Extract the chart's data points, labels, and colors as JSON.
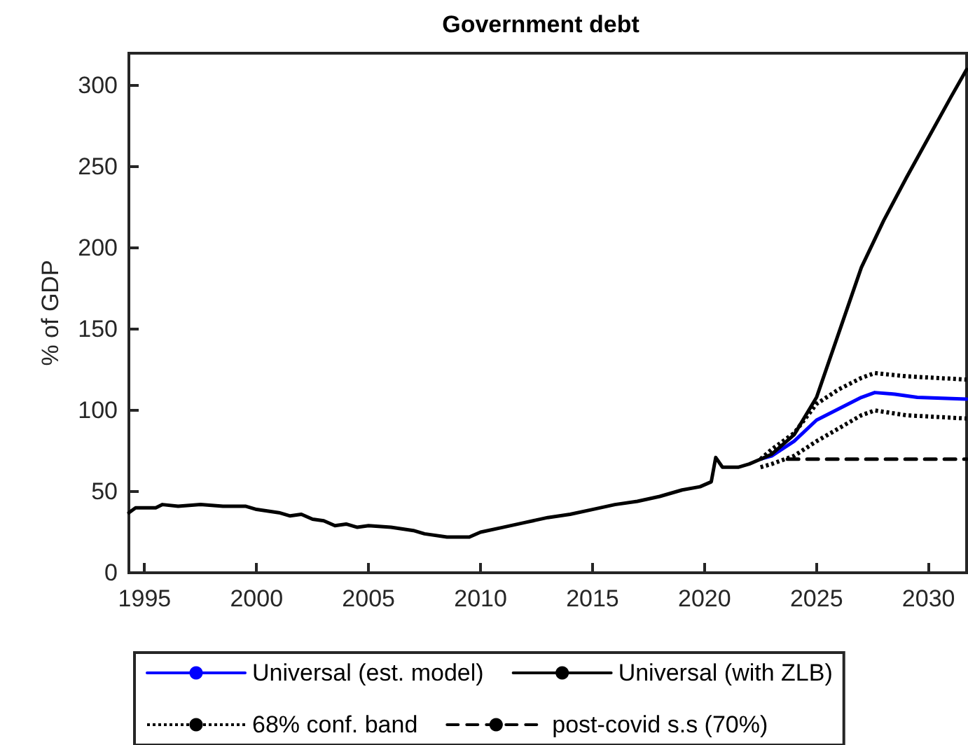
{
  "chart_data": {
    "type": "line",
    "title": "Government debt",
    "ylabel": "% of GDP",
    "xlim": [
      1994.3,
      2031.7
    ],
    "xticks": [
      1995,
      2000,
      2005,
      2010,
      2015,
      2020,
      2025,
      2030
    ],
    "ylim": [
      0,
      320
    ],
    "yticks": [
      0,
      50,
      100,
      150,
      200,
      250,
      300
    ],
    "grid": false,
    "legend": "bottom",
    "marker": "none",
    "series": [
      {
        "name": "Universal (est. model)",
        "color": "#0000ff",
        "line_style": "solid",
        "x": [
          2022.5,
          2023,
          2024,
          2025,
          2026,
          2027,
          2027.6,
          2028.5,
          2029.5,
          2031.7
        ],
        "values": [
          70,
          72,
          81,
          94,
          101,
          108,
          111,
          110,
          108,
          107
        ]
      },
      {
        "name": "Universal (with ZLB)",
        "color": "#000000",
        "line_style": "solid",
        "x": [
          1994.3,
          1994.6,
          1995.5,
          1995.8,
          1996.5,
          1997.5,
          1998.5,
          1999.5,
          2000,
          2001,
          2001.5,
          2002,
          2002.5,
          2003,
          2003.5,
          2004,
          2004.5,
          2005,
          2006,
          2007,
          2007.5,
          2008.5,
          2009,
          2009.5,
          2010,
          2011,
          2012,
          2013,
          2014,
          2015,
          2016,
          2017,
          2018,
          2019,
          2019.8,
          2020.3,
          2020.5,
          2020.8,
          2021.5,
          2022,
          2022.5,
          2023,
          2024,
          2025,
          2026,
          2027,
          2028,
          2029,
          2030,
          2031,
          2031.7
        ],
        "values": [
          37,
          40,
          40,
          42,
          41,
          42,
          41,
          41,
          39,
          37,
          35,
          36,
          33,
          32,
          29,
          30,
          28,
          29,
          28,
          26,
          24,
          22,
          22,
          22,
          25,
          28,
          31,
          34,
          36,
          39,
          42,
          44,
          47,
          51,
          53,
          56,
          71,
          65,
          65,
          67,
          70,
          73,
          85,
          108,
          148,
          188,
          217,
          243,
          268,
          293,
          310
        ]
      },
      {
        "name": "68% conf. band",
        "color": "#000000",
        "line_style": "dotted",
        "x": [
          2022.5,
          2023,
          2024,
          2025,
          2026,
          2027,
          2027.6,
          2029,
          2031.7
        ],
        "values": [
          70,
          76,
          86,
          104,
          113,
          120,
          123,
          121,
          119
        ]
      },
      {
        "color": "#000000",
        "line_style": "dotted",
        "x": [
          2022.5,
          2023,
          2024,
          2025,
          2026,
          2027,
          2027.6,
          2029,
          2031.7
        ],
        "values": [
          65,
          67,
          72,
          81,
          89,
          97,
          100,
          97,
          95
        ]
      },
      {
        "name": "post-covid s.s (70%)",
        "color": "#000000",
        "line_style": "dashed",
        "x": [
          2023.7,
          2031.7
        ],
        "values": [
          70,
          70
        ]
      }
    ]
  }
}
